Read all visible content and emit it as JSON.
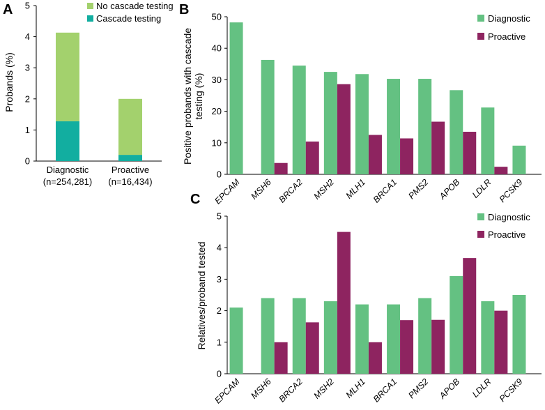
{
  "colors": {
    "no_cascade": "#a3d16d",
    "cascade": "#12aea0",
    "diagnostic": "#64c182",
    "proactive": "#8e2460",
    "axis": "#000000"
  },
  "chart_data": [
    {
      "panel": "A",
      "type": "bar",
      "stacked": true,
      "categories": [
        "Diagnostic",
        "Proactive"
      ],
      "category_subtitles": [
        "(n=254,281)",
        "(n=16,434)"
      ],
      "series": [
        {
          "name": "Cascade testing",
          "values": [
            1.28,
            0.2
          ]
        },
        {
          "name": "No cascade testing",
          "values": [
            2.85,
            1.8
          ]
        }
      ],
      "legend_order": [
        "No cascade testing",
        "Cascade testing"
      ],
      "xlabel": "",
      "ylabel": "Probands (%)",
      "ylim": [
        0,
        5
      ],
      "yticks": [
        "0",
        "1",
        "2",
        "3",
        "4",
        "5"
      ],
      "legend_position": "top-right"
    },
    {
      "panel": "B",
      "type": "bar",
      "categories": [
        "EPCAM",
        "MSH6",
        "BRCA2",
        "MSH2",
        "MLH1",
        "BRCA1",
        "PMS2",
        "APOB",
        "LDLR",
        "PCSK9"
      ],
      "series": [
        {
          "name": "Diagnostic",
          "values": [
            48.2,
            36.3,
            34.5,
            32.5,
            31.8,
            30.3,
            30.3,
            26.7,
            21.2,
            9.1
          ]
        },
        {
          "name": "Proactive",
          "values": [
            null,
            3.6,
            10.4,
            28.6,
            12.5,
            11.4,
            16.7,
            13.5,
            2.4,
            null
          ]
        }
      ],
      "xlabel": "",
      "ylabel": "Positive probands with cascade testing (%)",
      "ylabel_lines": [
        "Positive probands with cascade",
        "testing (%)"
      ],
      "ylim": [
        0,
        50
      ],
      "yticks": [
        "0",
        "10",
        "20",
        "30",
        "40",
        "50"
      ],
      "legend_position": "top-right"
    },
    {
      "panel": "C",
      "type": "bar",
      "categories": [
        "EPCAM",
        "MSH6",
        "BRCA2",
        "MSH2",
        "MLH1",
        "BRCA1",
        "PMS2",
        "APOB",
        "LDLR",
        "PCSK9"
      ],
      "series": [
        {
          "name": "Diagnostic",
          "values": [
            2.1,
            2.4,
            2.4,
            2.3,
            2.2,
            2.2,
            2.4,
            3.1,
            2.3,
            2.5
          ]
        },
        {
          "name": "Proactive",
          "values": [
            null,
            1.0,
            1.63,
            4.5,
            1.0,
            1.7,
            1.71,
            3.67,
            2.0,
            null
          ]
        }
      ],
      "xlabel": "",
      "ylabel": "Relatives/proband tested",
      "ylim": [
        0,
        5
      ],
      "yticks": [
        "0",
        "1",
        "2",
        "3",
        "4",
        "5"
      ],
      "legend_position": "top-right"
    }
  ]
}
